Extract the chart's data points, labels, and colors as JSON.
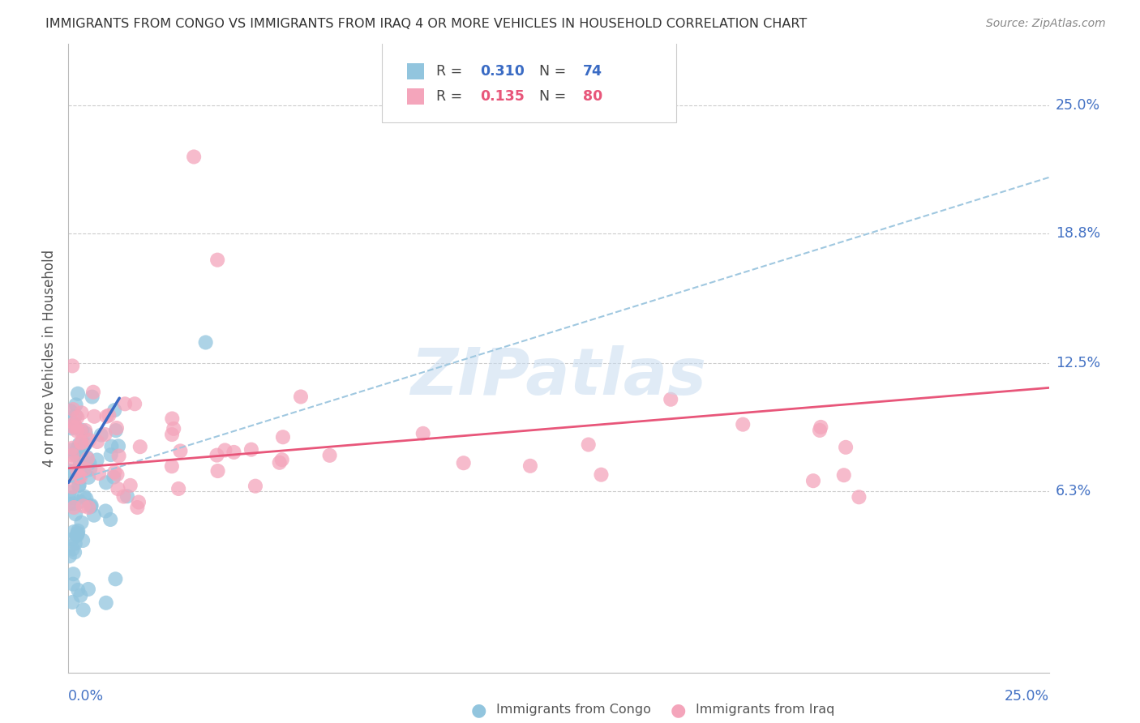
{
  "title": "IMMIGRANTS FROM CONGO VS IMMIGRANTS FROM IRAQ 4 OR MORE VEHICLES IN HOUSEHOLD CORRELATION CHART",
  "source": "Source: ZipAtlas.com",
  "ylabel": "4 or more Vehicles in Household",
  "ytick_labels": [
    "25.0%",
    "18.8%",
    "12.5%",
    "6.3%"
  ],
  "ytick_values": [
    0.25,
    0.188,
    0.125,
    0.063
  ],
  "xmin": 0.0,
  "xmax": 0.25,
  "ymin": -0.025,
  "ymax": 0.28,
  "congo_R": "0.310",
  "congo_N": "74",
  "iraq_R": "0.135",
  "iraq_N": "80",
  "congo_color": "#92C5DE",
  "iraq_color": "#F4A5BB",
  "congo_line_color": "#3A6BC4",
  "iraq_line_color": "#E8567A",
  "dashed_line_color": "#A0C8E0",
  "legend_label_congo": "Immigrants from Congo",
  "legend_label_iraq": "Immigrants from Iraq",
  "watermark": "ZIPatlas",
  "background_color": "#FFFFFF",
  "grid_color": "#CCCCCC",
  "title_color": "#333333",
  "axis_label_color": "#4472C4",
  "right_tick_color": "#4472C4"
}
